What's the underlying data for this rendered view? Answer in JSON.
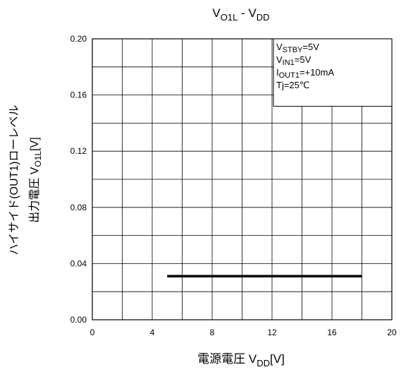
{
  "chart_data": {
    "type": "line",
    "title": {
      "main": "V",
      "sub1": "O1L",
      "mid": " - V",
      "sub2": "DD"
    },
    "xlabel": {
      "pre": "電源電圧 V",
      "sub": "DD",
      "post": "[V]"
    },
    "ylabel": {
      "line1": "ハイサイド(OUT1)ローレベル",
      "line2_pre": "出力電圧 V",
      "line2_sub": "O1L",
      "line2_post": "[V]"
    },
    "xlim": [
      0,
      20
    ],
    "ylim": [
      0,
      0.2
    ],
    "xticks": [
      0,
      4,
      8,
      12,
      16,
      20
    ],
    "xtick_labels": [
      "0",
      "4",
      "8",
      "12",
      "16",
      "20"
    ],
    "yticks": [
      0.0,
      0.04,
      0.08,
      0.12,
      0.16,
      0.2
    ],
    "ytick_labels": [
      "0.00",
      "0.04",
      "0.08",
      "0.12",
      "0.16",
      "0.20"
    ],
    "grid_x_step": 2,
    "grid_y_step": 0.02,
    "grid": true,
    "series": [
      {
        "x": [
          5,
          18
        ],
        "y": [
          0.031,
          0.031
        ]
      }
    ],
    "conditions": [
      {
        "pre": "V",
        "sub": "STBY",
        "post": "=5V"
      },
      {
        "pre": "V",
        "sub": "IN1",
        "post": "=5V"
      },
      {
        "pre": "I",
        "sub": "OUT1",
        "post": "=+10mA"
      },
      {
        "pre": "Tj=25℃",
        "sub": "",
        "post": ""
      }
    ],
    "conditions_placement": "top-right"
  }
}
